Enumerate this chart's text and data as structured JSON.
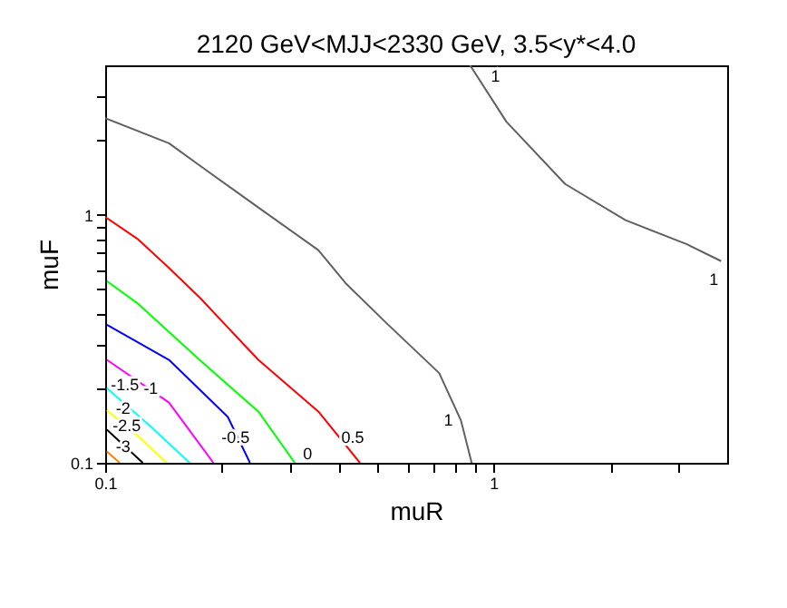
{
  "chart_data": {
    "type": "line",
    "title": "2120 GeV<MJJ<2330 GeV, 3.5<y*<4.0",
    "xlabel": "muR",
    "ylabel": "muF",
    "log": "xy",
    "grid": false,
    "legend": false,
    "marker": "none",
    "line_style": "solid",
    "xlim": [
      0.1,
      4
    ],
    "ylim": [
      0.1,
      4
    ],
    "xticks": [
      0.1,
      {
        "value": 0.2,
        "label": null
      },
      {
        "value": 0.3,
        "label": null
      },
      {
        "value": 0.4,
        "label": null
      },
      {
        "value": 0.5,
        "label": null
      },
      {
        "value": 0.6,
        "label": null
      },
      {
        "value": 0.7,
        "label": null
      },
      {
        "value": 0.8,
        "label": null
      },
      {
        "value": 0.9,
        "label": null
      },
      1,
      {
        "value": 2,
        "label": null
      },
      {
        "value": 3,
        "label": null
      }
    ],
    "yticks": [
      0.1,
      {
        "value": 0.2,
        "label": null
      },
      {
        "value": 0.3,
        "label": null
      },
      {
        "value": 0.4,
        "label": null
      },
      {
        "value": 0.5,
        "label": null
      },
      {
        "value": 0.6,
        "label": null
      },
      {
        "value": 0.7,
        "label": null
      },
      {
        "value": 0.8,
        "label": null
      },
      {
        "value": 0.9,
        "label": null
      },
      1,
      {
        "value": 2,
        "label": null
      },
      {
        "value": 3,
        "label": null
      }
    ],
    "series": [
      {
        "name": "1",
        "color": "#606060",
        "x": [
          0.1,
          0.146,
          0.175,
          0.248,
          0.354,
          0.416,
          0.526,
          0.725,
          0.825,
          0.879
        ],
        "values": [
          2.45,
          1.94,
          1.58,
          1.07,
          0.72,
          0.53,
          0.37,
          0.23,
          0.148,
          0.1
        ]
      },
      {
        "name": "1",
        "color": "#606060",
        "x": [
          0.871,
          1.08,
          1.53,
          2.19,
          3.15,
          3.86
        ],
        "values": [
          4.0,
          2.37,
          1.33,
          0.95,
          0.76,
          0.65
        ]
      },
      {
        "name": "0.5",
        "color": "#ff0000",
        "x": [
          0.1,
          0.121,
          0.146,
          0.176,
          0.248,
          0.354,
          0.453
        ],
        "values": [
          0.98,
          0.8,
          0.61,
          0.46,
          0.26,
          0.161,
          0.1
        ]
      },
      {
        "name": "0",
        "color": "#00ff00",
        "x": [
          0.101,
          0.121,
          0.175,
          0.248,
          0.308
        ],
        "values": [
          0.54,
          0.44,
          0.26,
          0.161,
          0.1
        ]
      },
      {
        "name": "-0.5",
        "color": "#0000ff",
        "x": [
          0.101,
          0.146,
          0.207,
          0.236
        ],
        "values": [
          0.36,
          0.26,
          0.153,
          0.1
        ]
      },
      {
        "name": "-1",
        "color": "#ff00ff",
        "x": [
          0.101,
          0.146,
          0.19
        ],
        "values": [
          0.26,
          0.175,
          0.1
        ]
      },
      {
        "name": "-1.5",
        "color": "#00ffff",
        "x": [
          0.101,
          0.131,
          0.165
        ],
        "values": [
          0.2,
          0.14,
          0.1
        ]
      },
      {
        "name": "-2",
        "color": "#ffff00",
        "x": [
          0.101,
          0.121,
          0.144
        ],
        "values": [
          0.163,
          0.129,
          0.1
        ]
      },
      {
        "name": "-2.5",
        "color": "#000000",
        "x": [
          0.101,
          0.125
        ],
        "values": [
          0.136,
          0.1
        ]
      },
      {
        "name": "-3",
        "color": "#ff8000",
        "x": [
          0.101,
          0.109
        ],
        "values": [
          0.111,
          0.1
        ]
      }
    ]
  }
}
